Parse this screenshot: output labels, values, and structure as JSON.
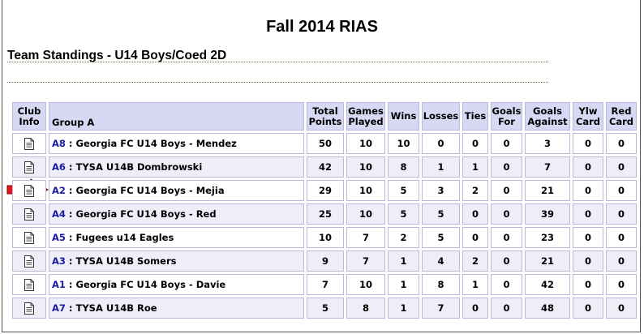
{
  "page": {
    "title": "Fall 2014 RIAS",
    "subtitle": "Team Standings - U14 Boys/Coed 2D"
  },
  "table": {
    "headers": {
      "club_info": [
        "Club",
        "Info"
      ],
      "group": "Group A",
      "total_points": [
        "Total",
        "Points"
      ],
      "games_played": [
        "Games",
        "Played"
      ],
      "wins": "Wins",
      "losses": "Losses",
      "ties": "Ties",
      "goals_for": [
        "Goals",
        "For"
      ],
      "goals_against": [
        "Goals",
        "Against"
      ],
      "ylw_card": [
        "Ylw",
        "Card"
      ],
      "red_card": [
        "Red",
        "Card"
      ]
    },
    "rows": [
      {
        "code": "A8",
        "team": " : Georgia FC U14 Boys - Mendez",
        "points": "50",
        "played": "10",
        "wins": "10",
        "losses": "0",
        "ties": "0",
        "gf": "0",
        "ga": "3",
        "ylw": "0",
        "red": "0"
      },
      {
        "code": "A6",
        "team": " : TYSA U14B Dombrowski",
        "points": "42",
        "played": "10",
        "wins": "8",
        "losses": "1",
        "ties": "1",
        "gf": "0",
        "ga": "7",
        "ylw": "0",
        "red": "0"
      },
      {
        "code": "A2",
        "team": " : Georgia FC U14 Boys - Mejia",
        "points": "29",
        "played": "10",
        "wins": "5",
        "losses": "3",
        "ties": "2",
        "gf": "0",
        "ga": "21",
        "ylw": "0",
        "red": "0"
      },
      {
        "code": "A4",
        "team": " : Georgia FC U14 Boys - Red",
        "points": "25",
        "played": "10",
        "wins": "5",
        "losses": "5",
        "ties": "0",
        "gf": "0",
        "ga": "39",
        "ylw": "0",
        "red": "0"
      },
      {
        "code": "A5",
        "team": " : Fugees u14 Eagles",
        "points": "10",
        "played": "7",
        "wins": "2",
        "losses": "5",
        "ties": "0",
        "gf": "0",
        "ga": "23",
        "ylw": "0",
        "red": "0"
      },
      {
        "code": "A3",
        "team": " : TYSA U14B Somers",
        "points": "9",
        "played": "7",
        "wins": "1",
        "losses": "4",
        "ties": "2",
        "gf": "0",
        "ga": "21",
        "ylw": "0",
        "red": "0"
      },
      {
        "code": "A1",
        "team": " : Georgia FC U14 Boys - Davie",
        "points": "7",
        "played": "10",
        "wins": "1",
        "losses": "8",
        "ties": "1",
        "gf": "0",
        "ga": "42",
        "ylw": "0",
        "red": "0"
      },
      {
        "code": "A7",
        "team": " : TYSA U14B Roe",
        "points": "5",
        "played": "8",
        "wins": "1",
        "losses": "7",
        "ties": "0",
        "gf": "0",
        "ga": "48",
        "ylw": "0",
        "red": "0"
      }
    ]
  },
  "highlight": {
    "arrow_row_code": "A2",
    "arrow_color": "#e8141a"
  },
  "colors": {
    "header_bg": "#d8d8f4",
    "alt_row_bg": "#eeeef8",
    "link": "#1a1aa0"
  },
  "icons": {
    "club_info": "document-icon",
    "marker": "red-arrow-icon"
  }
}
